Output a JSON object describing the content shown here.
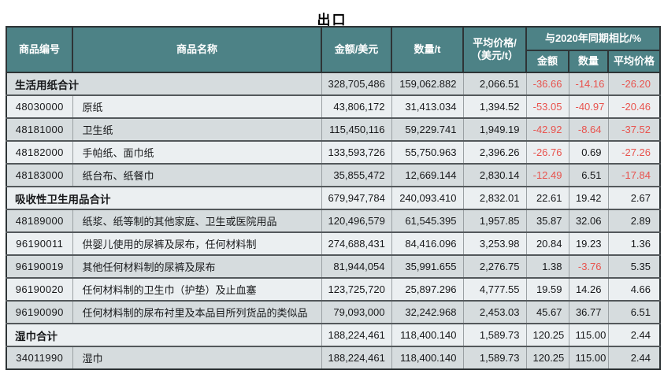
{
  "title": "出口",
  "colors": {
    "header_bg": "#4d8286",
    "row_dark": "#d6dcde",
    "row_light": "#ebeff1",
    "negative_text": "#e8534e"
  },
  "table": {
    "header": {
      "code": "商品编号",
      "name": "商品名称",
      "amount": "金额/美元",
      "quantity": "数量/t",
      "avg_price": "平均价格/\n（美元/t）",
      "yoy_group": "与2020年同期相比/%",
      "yoy_amount": "金额",
      "yoy_quantity": "数量",
      "yoy_avg_price": "平均价格"
    },
    "rows": [
      {
        "type": "section",
        "name": "生活用纸合计",
        "values": [
          "328,705,486",
          "159,062.882",
          "2,066.51",
          "-36.66",
          "-14.16",
          "-26.20"
        ]
      },
      {
        "type": "item",
        "code": "48030000",
        "name": "原纸",
        "values": [
          "43,806,172",
          "31,413.034",
          "1,394.52",
          "-53.05",
          "-40.97",
          "-20.46"
        ]
      },
      {
        "type": "item",
        "code": "48181000",
        "name": "卫生纸",
        "values": [
          "115,450,116",
          "59,229.741",
          "1,949.19",
          "-42.92",
          "-8.64",
          "-37.52"
        ]
      },
      {
        "type": "item",
        "code": "48182000",
        "name": "手帕纸、面巾纸",
        "values": [
          "133,593,726",
          "55,750.963",
          "2,396.26",
          "-26.76",
          "0.69",
          "-27.26"
        ]
      },
      {
        "type": "item",
        "code": "48183000",
        "name": "纸台布、纸餐巾",
        "values": [
          "35,855,472",
          "12,669.144",
          "2,830.14",
          "-12.49",
          "6.51",
          "-17.84"
        ]
      },
      {
        "type": "section",
        "name": "吸收性卫生用品合计",
        "values": [
          "679,947,784",
          "240,093.410",
          "2,832.01",
          "22.61",
          "19.42",
          "2.67"
        ]
      },
      {
        "type": "item",
        "code": "48189000",
        "name": "纸浆、纸等制的其他家庭、卫生或医院用品",
        "values": [
          "120,496,579",
          "61,545.395",
          "1,957.85",
          "35.87",
          "32.06",
          "2.89"
        ]
      },
      {
        "type": "item",
        "code": "96190011",
        "name": "供婴儿使用的尿裤及尿布，任何材料制",
        "values": [
          "274,688,431",
          "84,416.096",
          "3,253.98",
          "20.84",
          "19.23",
          "1.36"
        ]
      },
      {
        "type": "item",
        "code": "96190019",
        "name": "其他任何材料制的尿裤及尿布",
        "values": [
          "81,944,054",
          "35,991.655",
          "2,276.75",
          "1.38",
          "-3.76",
          "5.35"
        ]
      },
      {
        "type": "item",
        "code": "96190020",
        "name": "任何材料制的卫生巾（护垫）及止血塞",
        "values": [
          "123,725,720",
          "25,897.296",
          "4,777.55",
          "19.59",
          "14.26",
          "4.66"
        ]
      },
      {
        "type": "item",
        "code": "96190090",
        "name": "任何材料制的尿布衬里及本品目所列货品的类似品",
        "values": [
          "79,093,000",
          "32,242.968",
          "2,453.03",
          "45.67",
          "36.77",
          "6.51"
        ]
      },
      {
        "type": "section",
        "name": "湿巾合计",
        "values": [
          "188,224,461",
          "118,400.140",
          "1,589.73",
          "120.25",
          "115.00",
          "2.44"
        ]
      },
      {
        "type": "item",
        "code": "34011990",
        "name": "湿巾",
        "values": [
          "188,224,461",
          "118,400.140",
          "1,589.73",
          "120.25",
          "115.00",
          "2.44"
        ]
      }
    ]
  }
}
